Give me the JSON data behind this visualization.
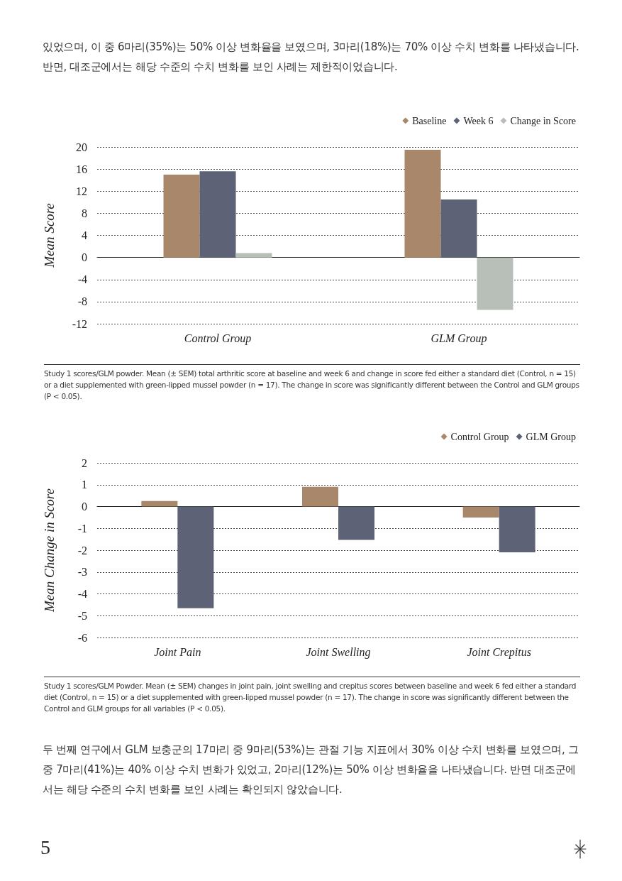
{
  "chart_data": [
    {
      "type": "bar",
      "ylabel": "Mean Score",
      "categories": [
        "Control Group",
        "GLM Group"
      ],
      "series": [
        {
          "name": "Baseline",
          "color": "#a8876a",
          "values": [
            15.0,
            19.5
          ]
        },
        {
          "name": "Week 6",
          "color": "#5d6276",
          "values": [
            15.6,
            10.5
          ]
        },
        {
          "name": "Change in Score",
          "color": "#b8bfb8",
          "values": [
            0.8,
            -9.5
          ]
        }
      ],
      "ylim": [
        -12,
        20
      ],
      "yticks": [
        -12,
        -8,
        -4,
        0,
        4,
        8,
        12,
        16,
        20
      ],
      "grid": "y",
      "legend": "top right",
      "annotations": [
        "있었으며, 이 중 6마리(35%)는 50% 이상 변화율을 보였으며, 3마리(18%)는 70% 이상 수치 변화를 나타냈습니다. 반면, 대조군에서는 해당 수준의 수치 변화를 보인 사례는 제한적이었습니다.",
        "Study 1 scores/GLM powder. Mean (± SEM) total arthritic score at baseline and week 6 and change in score fed either a standard diet (Control, n = 15) or a diet supplemented with green-lipped mussel powder (n = 17). The change in score was significantly different between the Control and GLM groups (P < 0.05)."
      ]
    },
    {
      "type": "bar",
      "ylabel": "Mean Change in Score",
      "categories": [
        "Joint Pain",
        "Joint Swelling",
        "Joint Crepitus"
      ],
      "series": [
        {
          "name": "Control Group",
          "color": "#a8876a",
          "values": [
            0.25,
            0.9,
            -0.5
          ]
        },
        {
          "name": "GLM Group",
          "color": "#5d6276",
          "values": [
            -4.66,
            -1.53,
            -2.1
          ]
        }
      ],
      "ylim": [
        -6,
        2
      ],
      "yticks": [
        -6,
        -5,
        -4,
        -3,
        -2,
        -1,
        0,
        1,
        2
      ],
      "grid": "y",
      "legend": "top right",
      "annotations": [
        "Study 1 scores/GLM Powder. Mean (± SEM) changes in joint pain, joint swelling and crepitus scores between baseline and week 6 fed either a standard diet (Control, n = 15) or a diet supplemented with green-lipped mussel powder (n = 17). The change in score was significantly different between the Control and GLM groups for all variables (P < 0.05).",
        "두 번째 연구에서 GLM 보충군의 17마리 중 9마리(53%)는 관절 기능 지표에서 30% 이상 수치 변화를 보였으며, 그 중 7마리(41%)는 40% 이상 수치 변화가 있었고, 2마리(12%)는 50% 이상 변화율을 나타냈습니다. 반면 대조군에서는 해당 수준의 수치 변화를 보인 사례는 확인되지 않았습니다.",
        "5"
      ]
    }
  ]
}
